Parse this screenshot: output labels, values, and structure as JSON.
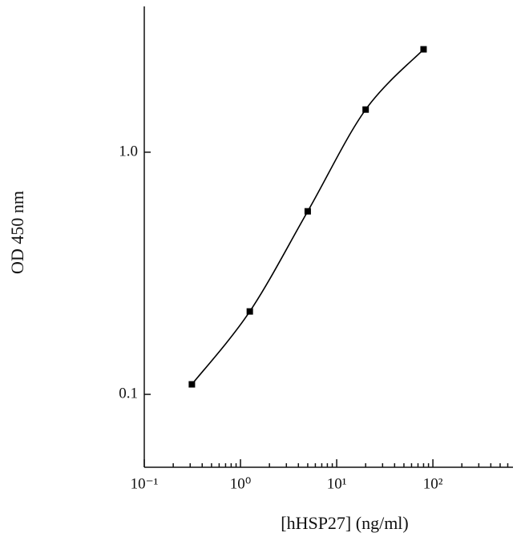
{
  "chart_data": {
    "type": "line",
    "x_label": "[hHSP27] (ng/ml)",
    "y_label": "OD 450 nm",
    "x": [
      0.3125,
      1.25,
      5,
      20,
      80
    ],
    "series": [
      {
        "color": "#000000",
        "values": [
          0.11,
          0.22,
          0.57,
          1.5,
          2.66
        ]
      }
    ],
    "xlog": true,
    "ylog": true,
    "xlim": [
      0.1,
      680
    ],
    "ylim": [
      0.05,
      4
    ],
    "xticks": [
      {
        "value": 0.1,
        "label": "10⁻¹"
      },
      {
        "value": 1,
        "label": "10⁰"
      },
      {
        "value": 10,
        "label": "10¹"
      },
      {
        "value": 100,
        "label": "10²"
      }
    ],
    "xminorticks": [
      0.2,
      0.3,
      0.4,
      0.5,
      0.6,
      0.7,
      0.8,
      0.9,
      2,
      3,
      4,
      5,
      6,
      7,
      8,
      9,
      20,
      30,
      40,
      50,
      60,
      70,
      80,
      90,
      200,
      300,
      400,
      500,
      600
    ],
    "yticks": [
      0.1,
      {
        "value": 1,
        "label": "1.0"
      }
    ]
  }
}
